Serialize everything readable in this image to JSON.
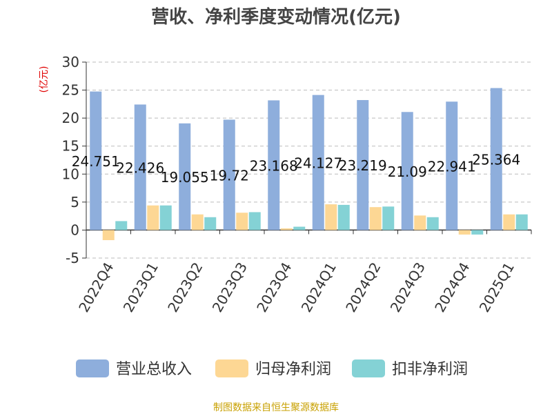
{
  "chart_data": {
    "type": "bar",
    "title": "营收、净利季度变动情况(亿元)",
    "ylabel": "(亿元)",
    "categories": [
      "2022Q4",
      "2023Q1",
      "2023Q2",
      "2023Q3",
      "2023Q4",
      "2024Q1",
      "2024Q2",
      "2024Q3",
      "2024Q4",
      "2025Q1"
    ],
    "series": [
      {
        "name": "营业总收入",
        "color": "#8eaedc",
        "values": [
          24.751,
          22.426,
          19.055,
          19.72,
          23.168,
          24.127,
          23.219,
          21.09,
          22.941,
          25.364
        ],
        "labels": [
          "24.751",
          "22.426",
          "19.055",
          "19.72",
          "23.168",
          "24.127",
          "23.219",
          "21.09",
          "22.941",
          "25.364"
        ]
      },
      {
        "name": "归母净利润",
        "color": "#fdd794",
        "values": [
          -1.8,
          4.4,
          2.8,
          3.1,
          0.3,
          4.6,
          4.1,
          2.6,
          -0.8,
          2.8
        ]
      },
      {
        "name": "扣非净利润",
        "color": "#84d2d5",
        "values": [
          1.6,
          4.4,
          2.3,
          3.2,
          0.6,
          4.5,
          4.2,
          2.3,
          -0.8,
          2.8
        ]
      }
    ],
    "ylim": [
      -5,
      30
    ],
    "yticks": [
      "-5",
      "0",
      "5",
      "10",
      "15",
      "20",
      "25",
      "30"
    ],
    "grid": true,
    "legend_position": "bottom"
  },
  "source": "制图数据来自恒生聚源数据库"
}
